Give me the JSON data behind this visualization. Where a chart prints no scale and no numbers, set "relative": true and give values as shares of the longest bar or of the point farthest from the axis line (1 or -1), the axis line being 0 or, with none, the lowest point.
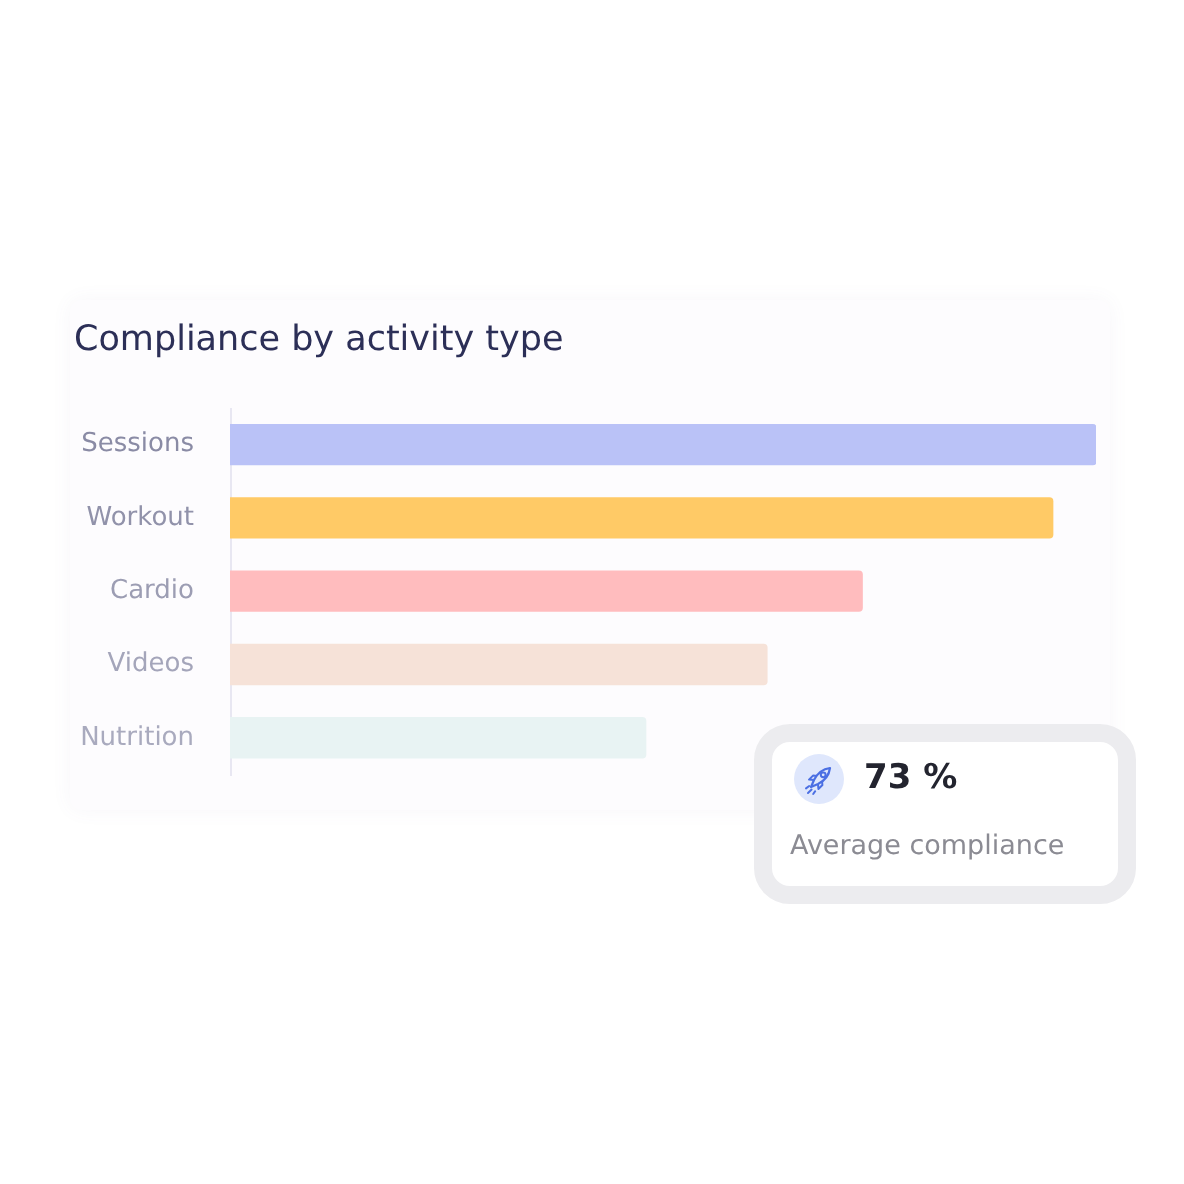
{
  "chart_data": {
    "type": "bar",
    "orientation": "horizontal",
    "relative": true,
    "title": "Compliance by activity type",
    "categories": [
      "Sessions",
      "Workout",
      "Cardio",
      "Videos",
      "Nutrition"
    ],
    "values": [
      1,
      0.95,
      0.73,
      0.62,
      0.48
    ],
    "colors": [
      "#bac2f7",
      "#ffca66",
      "#ffbcbe",
      "#f6e2d8",
      "#e8f3f3"
    ],
    "annotations": [
      "73 %",
      "Average compliance"
    ]
  }
}
